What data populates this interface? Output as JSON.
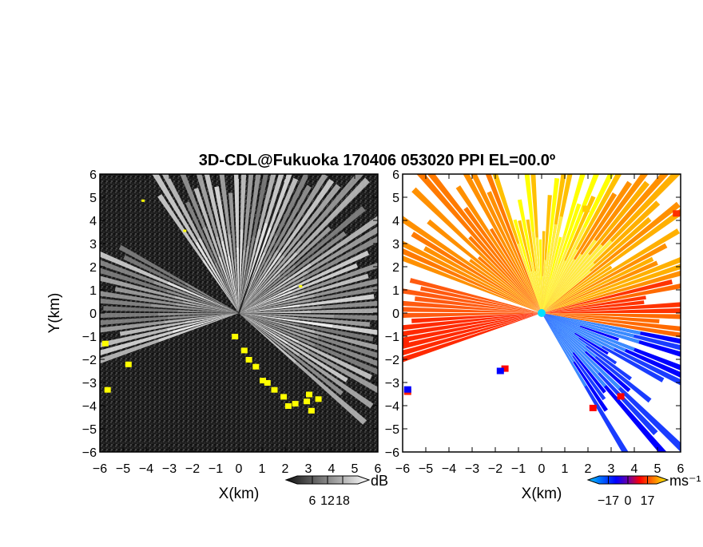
{
  "chart_data": [
    {
      "type": "heatmap",
      "title": "3D-CDL@Fukuoka 170406 053020 PPI EL=00.0º",
      "xlabel": "X(km)",
      "ylabel": "Y(km)",
      "xlim": [
        -6,
        6
      ],
      "ylim": [
        -6,
        6
      ],
      "x_ticks": [
        "−6",
        "−5",
        "−4",
        "−3",
        "−2",
        "−1",
        "0",
        "1",
        "2",
        "3",
        "4",
        "5",
        "6"
      ],
      "y_ticks": [
        "6",
        "5",
        "4",
        "3",
        "2",
        "1",
        "0",
        "−1",
        "−2",
        "−3",
        "−4",
        "−5",
        "−6"
      ],
      "colorbar": {
        "unit": "dB",
        "ticks": [
          "6",
          "12",
          "18"
        ],
        "range": [
          0,
          24
        ]
      },
      "colormap": [
        "#111111",
        "#ffffff"
      ],
      "highlight_color": "#ffff00"
    },
    {
      "type": "heatmap",
      "xlim": [
        -6,
        6
      ],
      "ylim": [
        -6,
        6
      ],
      "xlabel": "X(km)",
      "x_ticks": [
        "−6",
        "−5",
        "−4",
        "−3",
        "−2",
        "−1",
        "0",
        "1",
        "2",
        "3",
        "4",
        "5",
        "6"
      ],
      "colorbar": {
        "unit": "ms⁻¹",
        "ticks": [
          "−17",
          "0",
          "17"
        ],
        "range": [
          -25,
          25
        ]
      },
      "colormap": [
        "#00c8ff",
        "#0000ff",
        "#ff0000",
        "#ff9000",
        "#ffff00"
      ]
    }
  ]
}
